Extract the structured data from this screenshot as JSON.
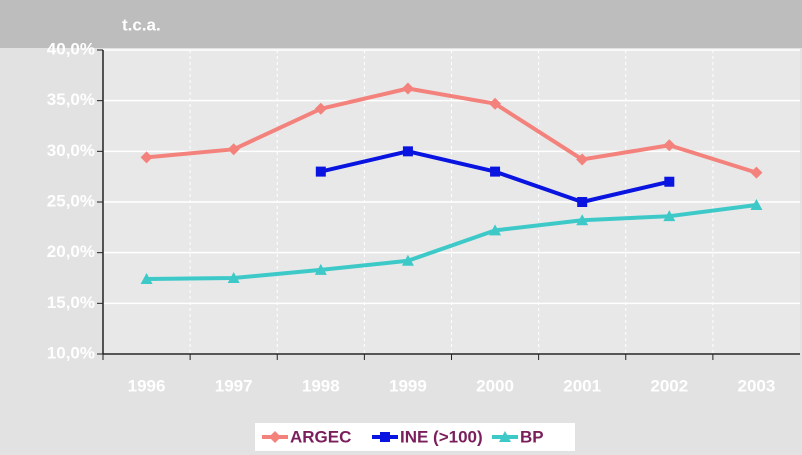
{
  "chart_data": {
    "type": "line",
    "y_label": "t.c.a.",
    "categories": [
      "1996",
      "1997",
      "1998",
      "1999",
      "2000",
      "2001",
      "2002",
      "2003"
    ],
    "series": [
      {
        "name": "ARGEC",
        "color": "#f4827c",
        "marker": "diamond",
        "values": [
          29.4,
          30.2,
          34.2,
          36.2,
          34.7,
          29.2,
          30.6,
          27.9
        ]
      },
      {
        "name": "INE (>100)",
        "color": "#0a14e0",
        "marker": "square",
        "values": [
          null,
          null,
          28.0,
          30.0,
          28.0,
          25.0,
          27.0,
          null
        ]
      },
      {
        "name": "BP",
        "color": "#3ec9c9",
        "marker": "triangle",
        "values": [
          17.4,
          17.5,
          18.3,
          19.2,
          22.2,
          23.2,
          23.6,
          24.7
        ]
      }
    ],
    "ylim": [
      10,
      40
    ],
    "yticks": [
      {
        "value": 10,
        "label": "10,0%"
      },
      {
        "value": 15,
        "label": "15,0%"
      },
      {
        "value": 20,
        "label": "20,0%"
      },
      {
        "value": 25,
        "label": "25,0%"
      },
      {
        "value": 30,
        "label": "30,0%"
      },
      {
        "value": 35,
        "label": "35,0%"
      },
      {
        "value": 40,
        "label": "40,0%"
      }
    ],
    "grid": true,
    "legend": "bottom"
  }
}
